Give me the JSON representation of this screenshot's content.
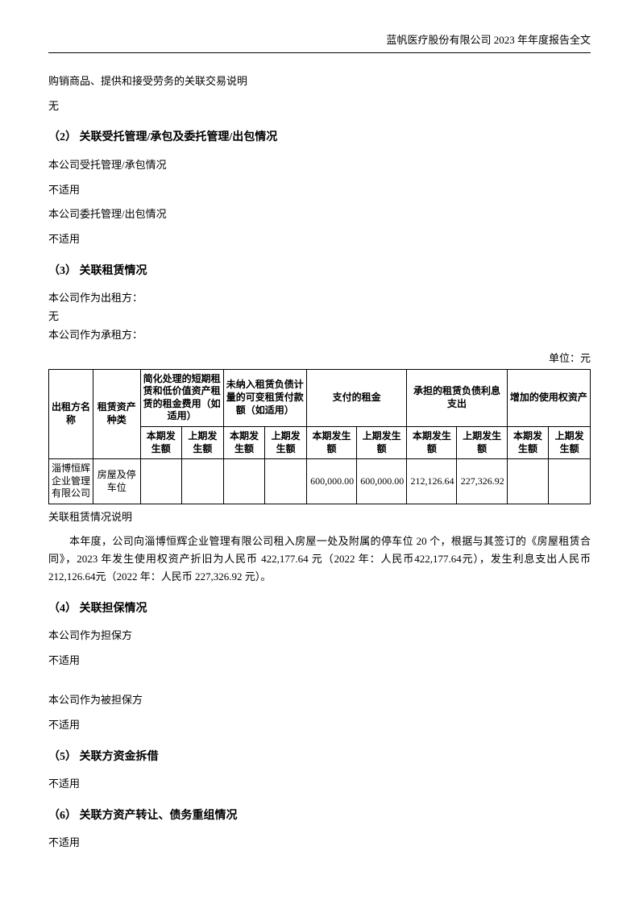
{
  "header": {
    "title": "蓝帆医疗股份有限公司 2023 年年度报告全文"
  },
  "intro": {
    "line1": "购销商品、提供和接受劳务的关联交易说明",
    "line2": "无"
  },
  "section2": {
    "title": "（2） 关联受托管理/承包及委托管理/出包情况",
    "line1": "本公司受托管理/承包情况",
    "line2": "不适用",
    "line3": "本公司委托管理/出包情况",
    "line4": "不适用"
  },
  "section3": {
    "title": "（3） 关联租赁情况",
    "line1": "本公司作为出租方：",
    "line2": "无",
    "line3": "本公司作为承租方：",
    "unit": "单位：元",
    "table": {
      "header_row1": {
        "col1": "出租方名称",
        "col2": "租赁资产种类",
        "col3": "简化处理的短期租赁和低价值资产租赁的租金费用（如适用）",
        "col4": "未纳入租赁负债计量的可变租赁付款额（如适用）",
        "col5": "支付的租金",
        "col6": "承担的租赁负债利息支出",
        "col7": "增加的使用权资产"
      },
      "header_row2": {
        "current": "本期发生额",
        "prior": "上期发生额"
      },
      "data_row": {
        "lessor": "淄博恒辉企业管理有限公司",
        "asset_type": "房屋及停车位",
        "simplified_current": "",
        "simplified_prior": "",
        "variable_current": "",
        "variable_prior": "",
        "rent_paid_current": "600,000.00",
        "rent_paid_prior": "600,000.00",
        "interest_current": "212,126.64",
        "interest_prior": "227,326.92",
        "rou_current": "",
        "rou_prior": ""
      }
    },
    "caption": "关联租赁情况说明",
    "desc": "本年度，公司向淄博恒辉企业管理有限公司租入房屋一处及附属的停车位 20 个，根据与其签订的《房屋租赁合同》，2023 年发生使用权资产折旧为人民币 422,177.64 元（2022 年：人民币422,177.64元），发生利息支出人民币212,126.64元（2022 年：人民币 227,326.92 元）。"
  },
  "section4": {
    "title": "（4） 关联担保情况",
    "line1": "本公司作为担保方",
    "line2": "不适用",
    "line3": "本公司作为被担保方",
    "line4": "不适用"
  },
  "section5": {
    "title": "（5） 关联方资金拆借",
    "line1": "不适用"
  },
  "section6": {
    "title": "（6） 关联方资产转让、债务重组情况",
    "line1": "不适用"
  }
}
